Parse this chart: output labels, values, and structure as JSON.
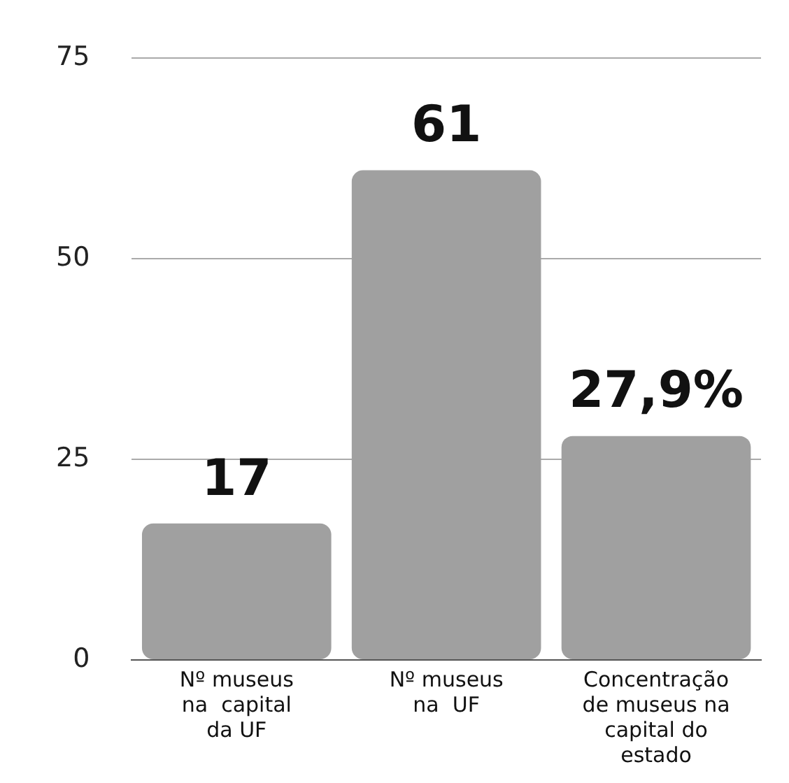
{
  "chart_data": {
    "type": "bar",
    "categories": [
      "Nº museus\nna  capital\nda UF",
      "Nº museus\nna  UF",
      "Concentração\nde museus na\ncapital do\nestado"
    ],
    "values": [
      17,
      61,
      27.9
    ],
    "value_labels": [
      "17",
      "61",
      "27,9%"
    ],
    "color": "#a0a0a0",
    "ylim": [
      0,
      75
    ],
    "yticks": [
      0,
      25,
      50,
      75
    ],
    "grid": "y"
  }
}
